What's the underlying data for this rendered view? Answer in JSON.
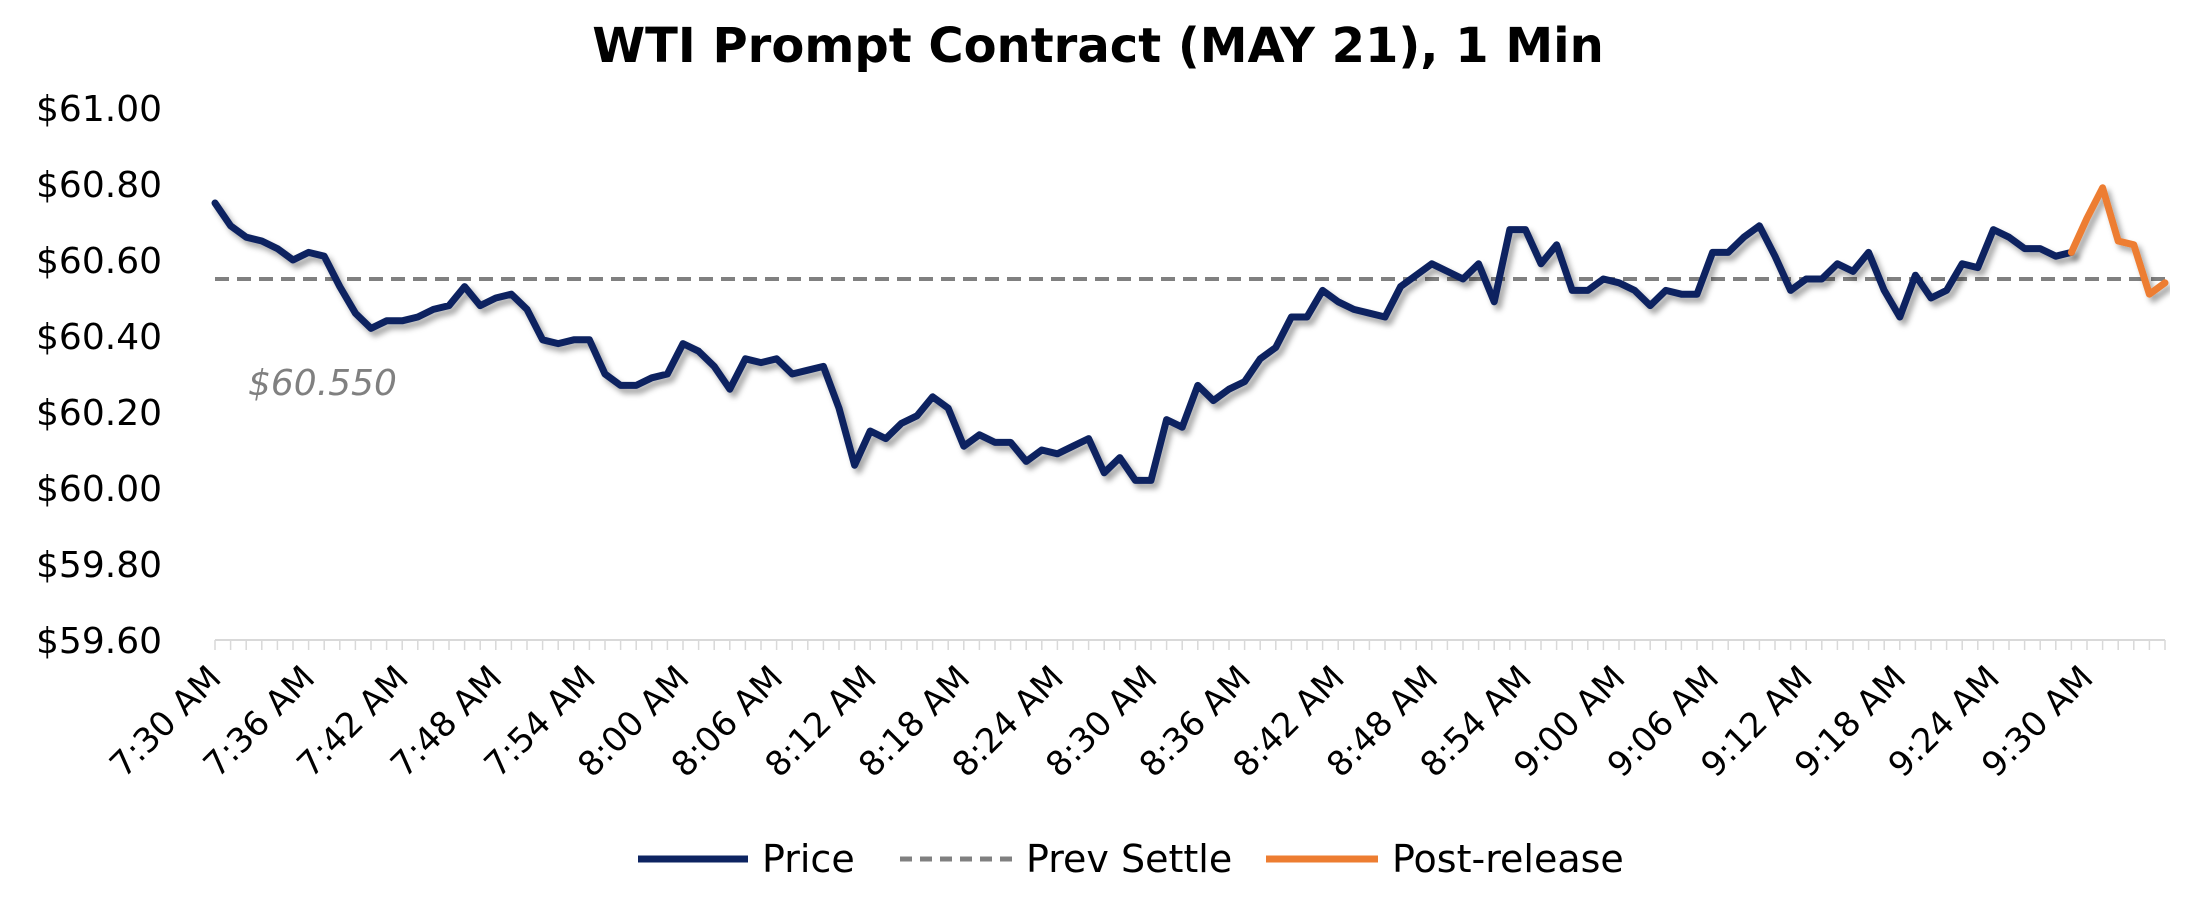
{
  "chart_data": {
    "type": "line",
    "title": "WTI Prompt Contract (MAY 21), 1 Min",
    "xlabel": "",
    "ylabel": "",
    "ylim": [
      59.6,
      61.0
    ],
    "yticks": [
      59.6,
      59.8,
      60.0,
      60.2,
      60.4,
      60.6,
      60.8,
      61.0
    ],
    "ytick_labels": [
      "$59.60",
      "$59.80",
      "$60.00",
      "$60.20",
      "$60.40",
      "$60.60",
      "$60.80",
      "$61.00"
    ],
    "x_tick_labels": [
      "7:30 AM",
      "7:36 AM",
      "7:42 AM",
      "7:48 AM",
      "7:54 AM",
      "8:00 AM",
      "8:06 AM",
      "8:12 AM",
      "8:18 AM",
      "8:24 AM",
      "8:30 AM",
      "8:36 AM",
      "8:42 AM",
      "8:48 AM",
      "8:54 AM",
      "9:00 AM",
      "9:06 AM",
      "9:12 AM",
      "9:18 AM",
      "9:24 AM",
      "9:30 AM"
    ],
    "minutes_per_tick": 6,
    "total_minutes": 125,
    "series": [
      {
        "name": "Price",
        "color": "#0d2461",
        "start_minute": 0,
        "values": [
          60.75,
          60.69,
          60.66,
          60.65,
          60.63,
          60.6,
          60.62,
          60.61,
          60.53,
          60.46,
          60.42,
          60.44,
          60.44,
          60.45,
          60.47,
          60.48,
          60.53,
          60.48,
          60.5,
          60.51,
          60.47,
          60.39,
          60.38,
          60.39,
          60.39,
          60.3,
          60.27,
          60.27,
          60.29,
          60.3,
          60.38,
          60.36,
          60.32,
          60.26,
          60.34,
          60.33,
          60.34,
          60.3,
          60.31,
          60.32,
          60.21,
          60.06,
          60.15,
          60.13,
          60.17,
          60.19,
          60.24,
          60.21,
          60.11,
          60.14,
          60.12,
          60.12,
          60.07,
          60.1,
          60.09,
          60.11,
          60.13,
          60.04,
          60.08,
          60.02,
          60.02,
          60.18,
          60.16,
          60.27,
          60.23,
          60.26,
          60.28,
          60.34,
          60.37,
          60.45,
          60.45,
          60.52,
          60.49,
          60.47,
          60.46,
          60.45,
          60.53,
          60.56,
          60.59,
          60.57,
          60.55,
          60.59,
          60.49,
          60.68,
          60.68,
          60.59,
          60.64,
          60.52,
          60.52,
          60.55,
          60.54,
          60.52,
          60.48,
          60.52,
          60.51,
          60.51,
          60.62,
          60.62,
          60.66,
          60.69,
          60.61,
          60.52,
          60.55,
          60.55,
          60.59,
          60.57,
          60.62,
          60.52,
          60.45,
          60.56,
          60.5,
          60.52,
          60.59,
          60.58,
          60.68,
          60.66,
          60.63,
          60.63,
          60.61,
          60.62
        ]
      },
      {
        "name": "Prev Settle",
        "color": "#808080",
        "style": "dashed",
        "value": 60.55,
        "label": "$60.550"
      },
      {
        "name": "Post-release",
        "color": "#ed7d31",
        "start_minute": 119,
        "values": [
          60.62,
          60.71,
          60.79,
          60.65,
          60.64,
          60.51,
          60.54
        ]
      }
    ],
    "legend": {
      "position": "bottom-center",
      "entries": [
        "Price",
        "Prev Settle",
        "Post-release"
      ]
    }
  }
}
